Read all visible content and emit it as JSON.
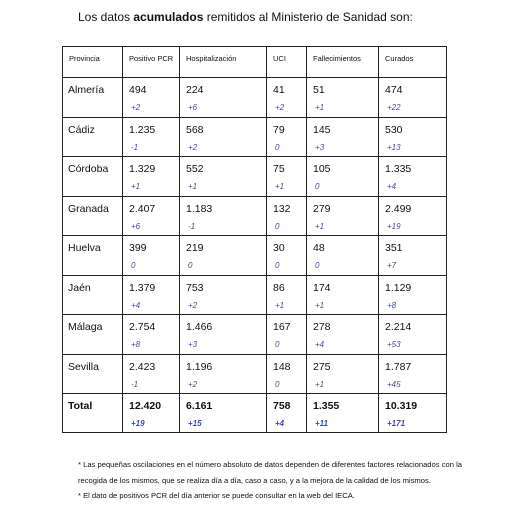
{
  "intro": {
    "before": "Los datos ",
    "bold": "acumulados",
    "after": " remitidos al Ministerio de Sanidad son:"
  },
  "headers": [
    "Provincia",
    "Positivo PCR",
    "Hospitalización",
    "UCI",
    "Fallecimientos",
    "Curados"
  ],
  "rows": [
    {
      "name": "Almería",
      "values": [
        "494",
        "224",
        "41",
        "51",
        "474"
      ],
      "incs": [
        "+2",
        "+6",
        "+2",
        "+1",
        "+22"
      ]
    },
    {
      "name": "Cádiz",
      "values": [
        "1.235",
        "568",
        "79",
        "145",
        "530"
      ],
      "incs": [
        "-1",
        "+2",
        "0",
        "+3",
        "+13"
      ]
    },
    {
      "name": "Córdoba",
      "values": [
        "1.329",
        "552",
        "75",
        "105",
        "1.335"
      ],
      "incs": [
        "+1",
        "+1",
        "+1",
        "0",
        "+4"
      ]
    },
    {
      "name": "Granada",
      "values": [
        "2.407",
        "1.183",
        "132",
        "279",
        "2.499"
      ],
      "incs": [
        "+6",
        "-1",
        "0",
        "+1",
        "+19"
      ]
    },
    {
      "name": "Huelva",
      "values": [
        "399",
        "219",
        "30",
        "48",
        "351"
      ],
      "incs": [
        "0",
        "0",
        "0",
        "0",
        "+7"
      ]
    },
    {
      "name": "Jaén",
      "values": [
        "1.379",
        "753",
        "86",
        "174",
        "1.129"
      ],
      "incs": [
        "+4",
        "+2",
        "+1",
        "+1",
        "+8"
      ]
    },
    {
      "name": "Málaga",
      "values": [
        "2.754",
        "1.466",
        "167",
        "278",
        "2.214"
      ],
      "incs": [
        "+8",
        "+3",
        "0",
        "+4",
        "+53"
      ]
    },
    {
      "name": "Sevilla",
      "values": [
        "2.423",
        "1.196",
        "148",
        "275",
        "1.787"
      ],
      "incs": [
        "-1",
        "+2",
        "0",
        "+1",
        "+45"
      ]
    }
  ],
  "total": {
    "name": "Total",
    "values": [
      "12.420",
      "6.161",
      "758",
      "1.355",
      "10.319"
    ],
    "incs": [
      "+19",
      "+15",
      "+4",
      "+11",
      "+171"
    ]
  },
  "notes": [
    "* Las pequeñas oscilaciones en el número absoluto de datos dependen de diferentes factores relacionados con la recogida de los mismos, que se realiza día a día, caso a caso, y a la mejora de la calidad de los mismos.",
    "* El dato de positivos PCR del día anterior se puede consultar en la web del IECA."
  ]
}
